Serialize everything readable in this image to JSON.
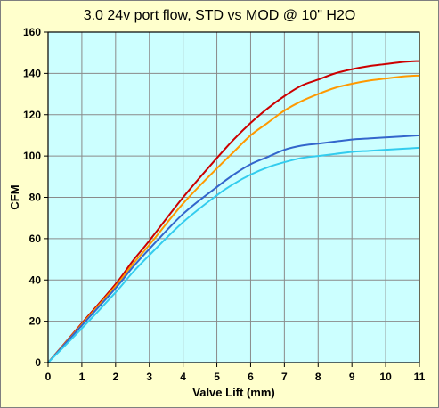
{
  "chart_data": {
    "type": "line",
    "title": "3.0 24v port flow, STD vs MOD @ 10\" H2O",
    "xlabel": "Valve Lift (mm)",
    "ylabel": "CFM",
    "xlim": [
      0,
      11
    ],
    "ylim": [
      0,
      160
    ],
    "xticks": [
      0,
      1,
      2,
      3,
      4,
      5,
      6,
      7,
      8,
      9,
      10,
      11
    ],
    "yticks": [
      0,
      20,
      40,
      60,
      80,
      100,
      120,
      140,
      160
    ],
    "grid": true,
    "legend": "none",
    "plot_background": "#CCFFFF",
    "frame_background": "#FFFFCC",
    "series": [
      {
        "color": "#CC0000",
        "x": [
          0,
          1,
          2,
          2.5,
          3,
          4,
          5,
          5.5,
          6,
          6.5,
          7,
          7.5,
          8,
          8.5,
          9,
          9.5,
          10,
          10.5,
          11
        ],
        "y": [
          0,
          19,
          38,
          49,
          59,
          80,
          99,
          108,
          116,
          123,
          129,
          134,
          137,
          140,
          142,
          143.5,
          144.5,
          145.5,
          146
        ]
      },
      {
        "color": "#FF9900",
        "x": [
          0,
          1,
          2,
          2.5,
          3,
          4,
          5,
          5.5,
          6,
          6.5,
          7,
          7.5,
          8,
          8.5,
          9,
          9.5,
          10,
          10.5,
          11
        ],
        "y": [
          0,
          18.5,
          37,
          47.5,
          57,
          77,
          94,
          102,
          110,
          116,
          122,
          126.5,
          130,
          133,
          135,
          136.5,
          137.5,
          138.5,
          139
        ]
      },
      {
        "color": "#3366CC",
        "x": [
          0,
          1,
          2,
          2.5,
          3,
          4,
          5,
          5.5,
          6,
          6.5,
          7,
          7.5,
          8,
          8.5,
          9,
          9.5,
          10,
          10.5,
          11
        ],
        "y": [
          0,
          18,
          36,
          46,
          55,
          72,
          85,
          91,
          96,
          99.5,
          103,
          105,
          106,
          107,
          108,
          108.5,
          109,
          109.5,
          110
        ]
      },
      {
        "color": "#33CCEE",
        "x": [
          0,
          1,
          2,
          2.5,
          3,
          4,
          5,
          5.5,
          6,
          6.5,
          7,
          7.5,
          8,
          8.5,
          9,
          9.5,
          10,
          10.5,
          11
        ],
        "y": [
          0,
          16.5,
          34,
          43.5,
          52,
          68,
          81,
          86.5,
          91,
          94.5,
          97,
          99,
          100,
          101,
          102,
          102.5,
          103,
          103.5,
          104
        ]
      }
    ]
  }
}
